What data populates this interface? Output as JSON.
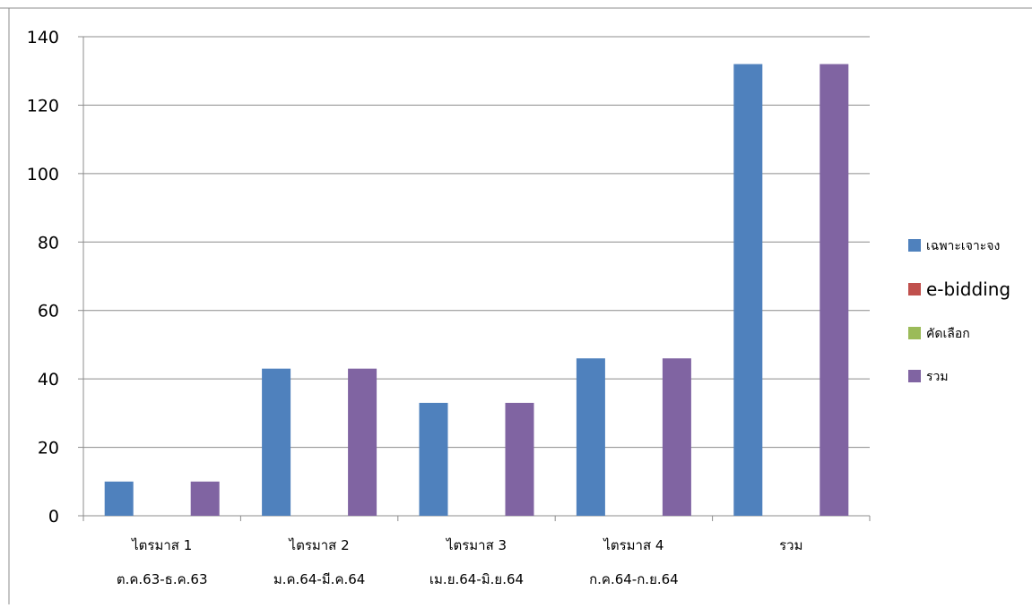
{
  "chart_data": {
    "type": "bar",
    "categories": [
      {
        "line1": "ไตรมาส 1",
        "line2": "ต.ค.63-ธ.ค.63"
      },
      {
        "line1": "ไตรมาส 2",
        "line2": "ม.ค.64-มี.ค.64"
      },
      {
        "line1": "ไตรมาส 3",
        "line2": "เม.ย.64-มิ.ย.64"
      },
      {
        "line1": "ไตรมาส 4",
        "line2": "ก.ค.64-ก.ย.64"
      },
      {
        "line1": "รวม",
        "line2": ""
      }
    ],
    "series": [
      {
        "name": "เฉพาะเจาะจง",
        "color": "#4f81bd",
        "values": [
          10,
          43,
          33,
          46,
          132
        ]
      },
      {
        "name": "e-bidding",
        "color": "#c0504d",
        "values": [
          0,
          0,
          0,
          0,
          0
        ]
      },
      {
        "name": "คัดเลือก",
        "color": "#9bbb59",
        "values": [
          0,
          0,
          0,
          0,
          0
        ]
      },
      {
        "name": "รวม",
        "color": "#8064a2",
        "values": [
          10,
          43,
          33,
          46,
          132
        ]
      }
    ],
    "ylim": [
      0,
      140
    ],
    "yticks": [
      0,
      20,
      40,
      60,
      80,
      100,
      120,
      140
    ],
    "grid": true,
    "legend_position": "right"
  }
}
